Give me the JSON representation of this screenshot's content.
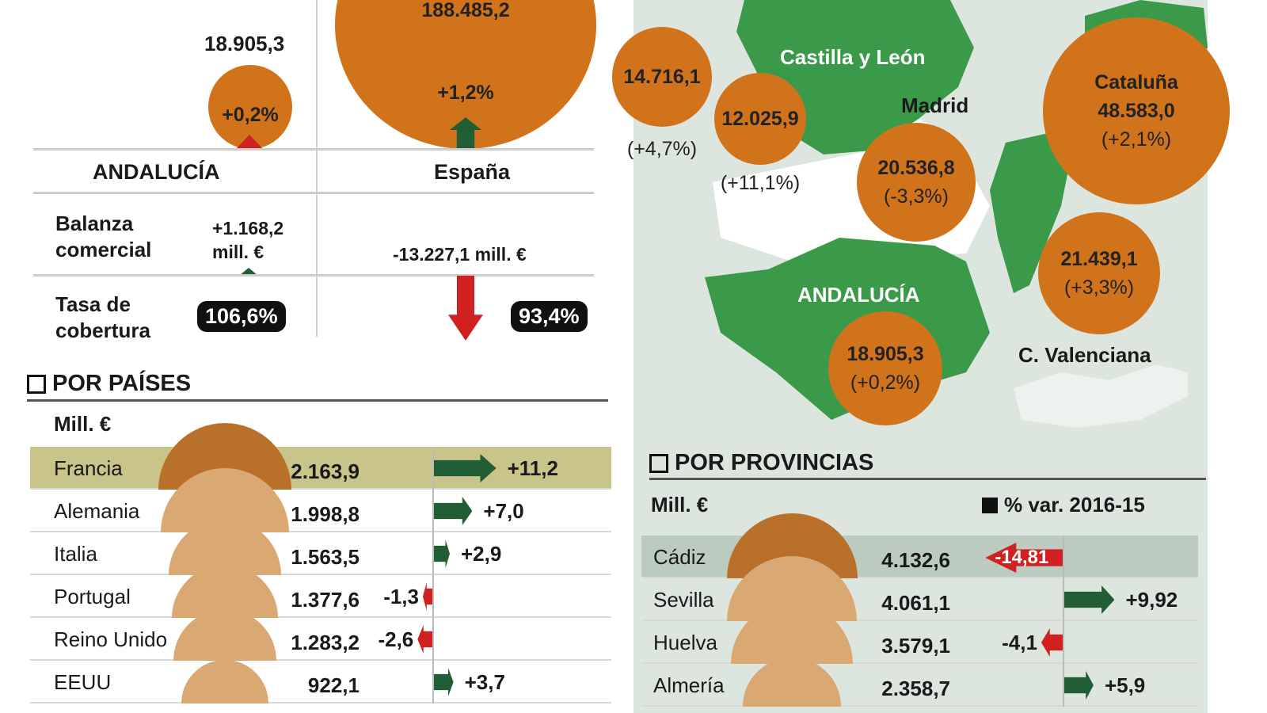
{
  "summary": {
    "andalucia": {
      "label": "ANDALUCÍA",
      "exports": "18.905,3",
      "var": "+0,2%",
      "balance_label": "Balanza comercial",
      "balance_value": "+1.168,2",
      "balance_unit": "mill. €",
      "coverage_label": "Tasa de cobertura",
      "coverage": "106,6%"
    },
    "espana": {
      "label": "España",
      "exports": "188.485,2",
      "var": "+1,2%",
      "balance": "-13.227,1 mill. €",
      "coverage": "93,4%"
    }
  },
  "map": {
    "labels": {
      "cyl": "Castilla y León",
      "madrid": "Madrid",
      "cataluna": "Cataluña",
      "andalucia": "ANDALUCÍA",
      "cval": "C. Valenciana"
    },
    "bubbles": [
      {
        "value": "14.716,1",
        "var": "(+4,7%)"
      },
      {
        "value": "12.025,9",
        "var": "(+11,1%)"
      },
      {
        "value": "20.536,8",
        "var": "(-3,3%)"
      },
      {
        "value": "48.583,0",
        "var": "(+2,1%)"
      },
      {
        "value": "21.439,1",
        "var": "(+3,3%)"
      },
      {
        "value": "18.905,3",
        "var": "(+0,2%)"
      }
    ]
  },
  "colors": {
    "orange": "#d0731a",
    "green": "#3b9a4a",
    "dark_green": "#215d35",
    "red": "#d0201f",
    "highlight": "#c9c48a"
  },
  "chart_data": [
    {
      "type": "bar",
      "title": "POR PAÍSES",
      "unit_label": "Mill. €",
      "categories": [
        "Francia",
        "Alemania",
        "Italia",
        "Portugal",
        "Reino Unido",
        "EEUU"
      ],
      "values": [
        2163.9,
        1998.8,
        1563.5,
        1377.6,
        1283.2,
        922.1
      ],
      "value_labels": [
        "2.163,9",
        "1.998,8",
        "1.563,5",
        "1.377,6",
        "1.283,2",
        "922,1"
      ],
      "variation": [
        11.2,
        7.0,
        2.9,
        -1.3,
        -2.6,
        3.7
      ],
      "variation_labels": [
        "+11,2",
        "+7,0",
        "+2,9",
        "-1,3",
        "-2,6",
        "+3,7"
      ]
    },
    {
      "type": "bar",
      "title": "POR PROVINCIAS",
      "unit_label": "Mill. €",
      "legend": "% var. 2016-15",
      "categories": [
        "Cádiz",
        "Sevilla",
        "Huelva",
        "Almería"
      ],
      "values": [
        4132.6,
        4061.1,
        3579.1,
        2358.7
      ],
      "value_labels": [
        "4.132,6",
        "4.061,1",
        "3.579,1",
        "2.358,7"
      ],
      "variation": [
        -14.81,
        9.92,
        -4.1,
        5.9
      ],
      "variation_labels": [
        "-14,81",
        "+9,92",
        "-4,1",
        "+5,9"
      ]
    }
  ]
}
